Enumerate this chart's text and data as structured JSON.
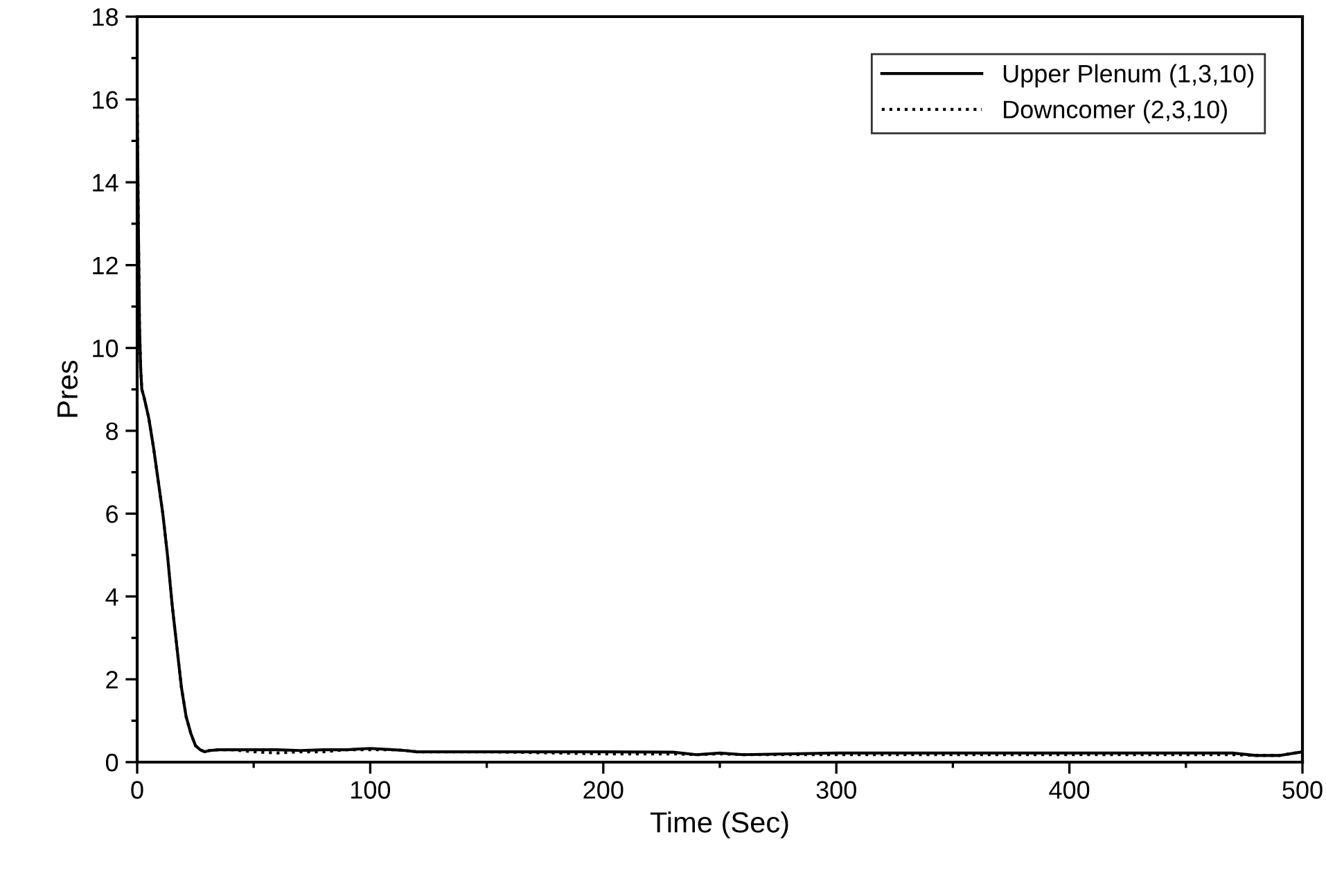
{
  "chart_data": {
    "type": "line",
    "xlabel": "Time (Sec)",
    "ylabel": "Pres",
    "xlim": [
      0,
      500
    ],
    "ylim": [
      0,
      18
    ],
    "xticks": [
      0,
      100,
      200,
      300,
      400,
      500
    ],
    "yticks": [
      0,
      2,
      4,
      6,
      8,
      10,
      12,
      14,
      16,
      18
    ],
    "legend": "top right",
    "grid": false,
    "series": [
      {
        "name": "Upper Plenum (1,3,10)",
        "color": "#000000",
        "line_style": "solid",
        "x": [
          0,
          0.5,
          1,
          1.5,
          2,
          3,
          5,
          7,
          9,
          11,
          13,
          15,
          17,
          19,
          21,
          23,
          25,
          27,
          29,
          31,
          35,
          40,
          50,
          60,
          70,
          80,
          90,
          100,
          110,
          115,
          120,
          150,
          200,
          230,
          240,
          250,
          260,
          300,
          350,
          400,
          440,
          470,
          480,
          490,
          500
        ],
        "values": [
          16,
          13,
          10.5,
          9.5,
          9,
          8.8,
          8.3,
          7.6,
          6.8,
          6,
          5,
          3.8,
          2.8,
          1.8,
          1.1,
          0.7,
          0.4,
          0.3,
          0.25,
          0.28,
          0.3,
          0.3,
          0.3,
          0.3,
          0.28,
          0.3,
          0.3,
          0.33,
          0.3,
          0.28,
          0.25,
          0.25,
          0.25,
          0.24,
          0.18,
          0.22,
          0.18,
          0.22,
          0.22,
          0.22,
          0.22,
          0.22,
          0.16,
          0.16,
          0.25
        ]
      },
      {
        "name": "Downcomer (2,3,10)",
        "color": "#000000",
        "line_style": "dotted",
        "x": [
          0,
          0.5,
          1,
          1.5,
          2,
          3,
          5,
          7,
          9,
          11,
          13,
          15,
          17,
          19,
          21,
          23,
          25,
          27,
          29,
          31,
          35,
          40,
          50,
          60,
          70,
          80,
          90,
          100,
          110,
          115,
          120,
          150,
          200,
          230,
          240,
          250,
          260,
          300,
          350,
          400,
          440,
          470,
          480,
          490,
          500
        ],
        "values": [
          16,
          13,
          10.5,
          9.5,
          9,
          8.8,
          8.3,
          7.6,
          6.8,
          6,
          5,
          3.8,
          2.8,
          1.8,
          1.1,
          0.7,
          0.4,
          0.3,
          0.25,
          0.28,
          0.3,
          0.3,
          0.25,
          0.22,
          0.25,
          0.25,
          0.3,
          0.3,
          0.3,
          0.28,
          0.25,
          0.25,
          0.2,
          0.2,
          0.18,
          0.2,
          0.18,
          0.18,
          0.18,
          0.18,
          0.18,
          0.18,
          0.16,
          0.16,
          0.25
        ]
      }
    ]
  }
}
